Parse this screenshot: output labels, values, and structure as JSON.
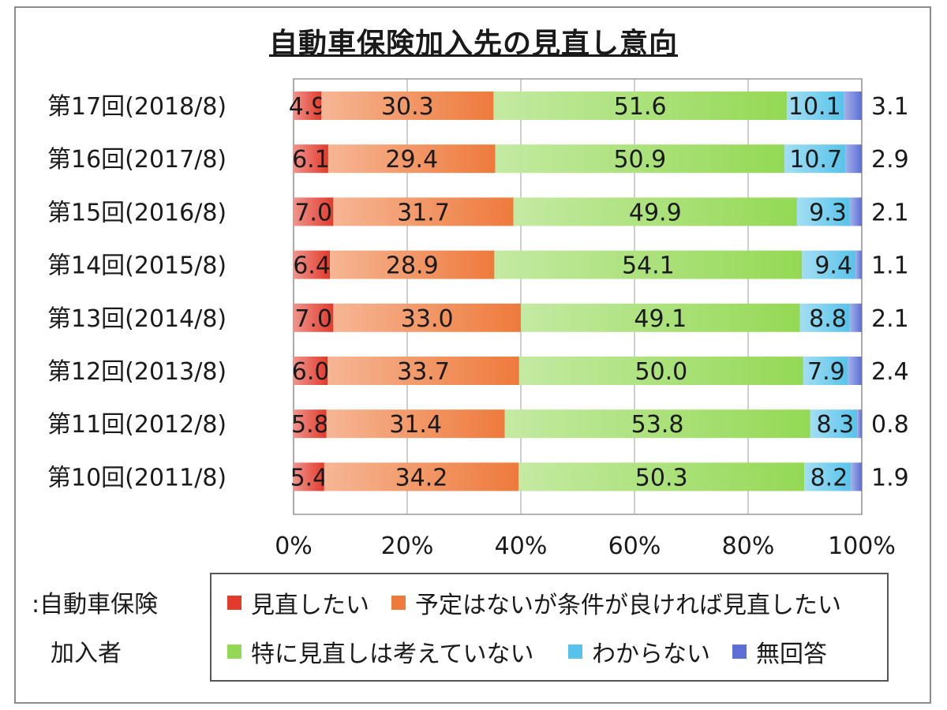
{
  "chart_data": {
    "type": "bar",
    "orientation": "horizontal",
    "stacked": "percent",
    "title": "自動車保険加入先の見直し意向",
    "categories": [
      "第17回(2018/8)",
      "第16回(2017/8)",
      "第15回(2016/8)",
      "第14回(2015/8)",
      "第13回(2014/8)",
      "第12回(2013/8)",
      "第11回(2012/8)",
      "第10回(2011/8)"
    ],
    "series": [
      {
        "name": "見直したい",
        "color": "#e23b2c",
        "values": [
          4.9,
          6.1,
          7.0,
          6.4,
          7.0,
          6.0,
          5.8,
          5.4
        ]
      },
      {
        "name": "予定はないが条件が良ければ見直したい",
        "color": "#ee7a3c",
        "values": [
          30.3,
          29.4,
          31.7,
          28.9,
          33.0,
          33.7,
          31.4,
          34.2
        ]
      },
      {
        "name": "特に見直しは考えていない",
        "color": "#94d955",
        "values": [
          51.6,
          50.9,
          49.9,
          54.1,
          49.1,
          50.0,
          53.8,
          50.3
        ]
      },
      {
        "name": "わからない",
        "color": "#58c3ea",
        "values": [
          10.1,
          10.7,
          9.3,
          9.4,
          8.8,
          7.9,
          8.3,
          8.2
        ]
      },
      {
        "name": "無回答",
        "color": "#5b6fd6",
        "values": [
          3.1,
          2.9,
          2.1,
          1.1,
          2.1,
          2.4,
          0.8,
          1.9
        ]
      }
    ],
    "x_ticks": [
      "0%",
      "20%",
      "40%",
      "60%",
      "80%",
      "100%"
    ],
    "xlim": [
      0,
      100
    ],
    "grid": true,
    "legend_position": "bottom"
  },
  "note_lines": [
    ":自動車保険",
    "加入者"
  ]
}
